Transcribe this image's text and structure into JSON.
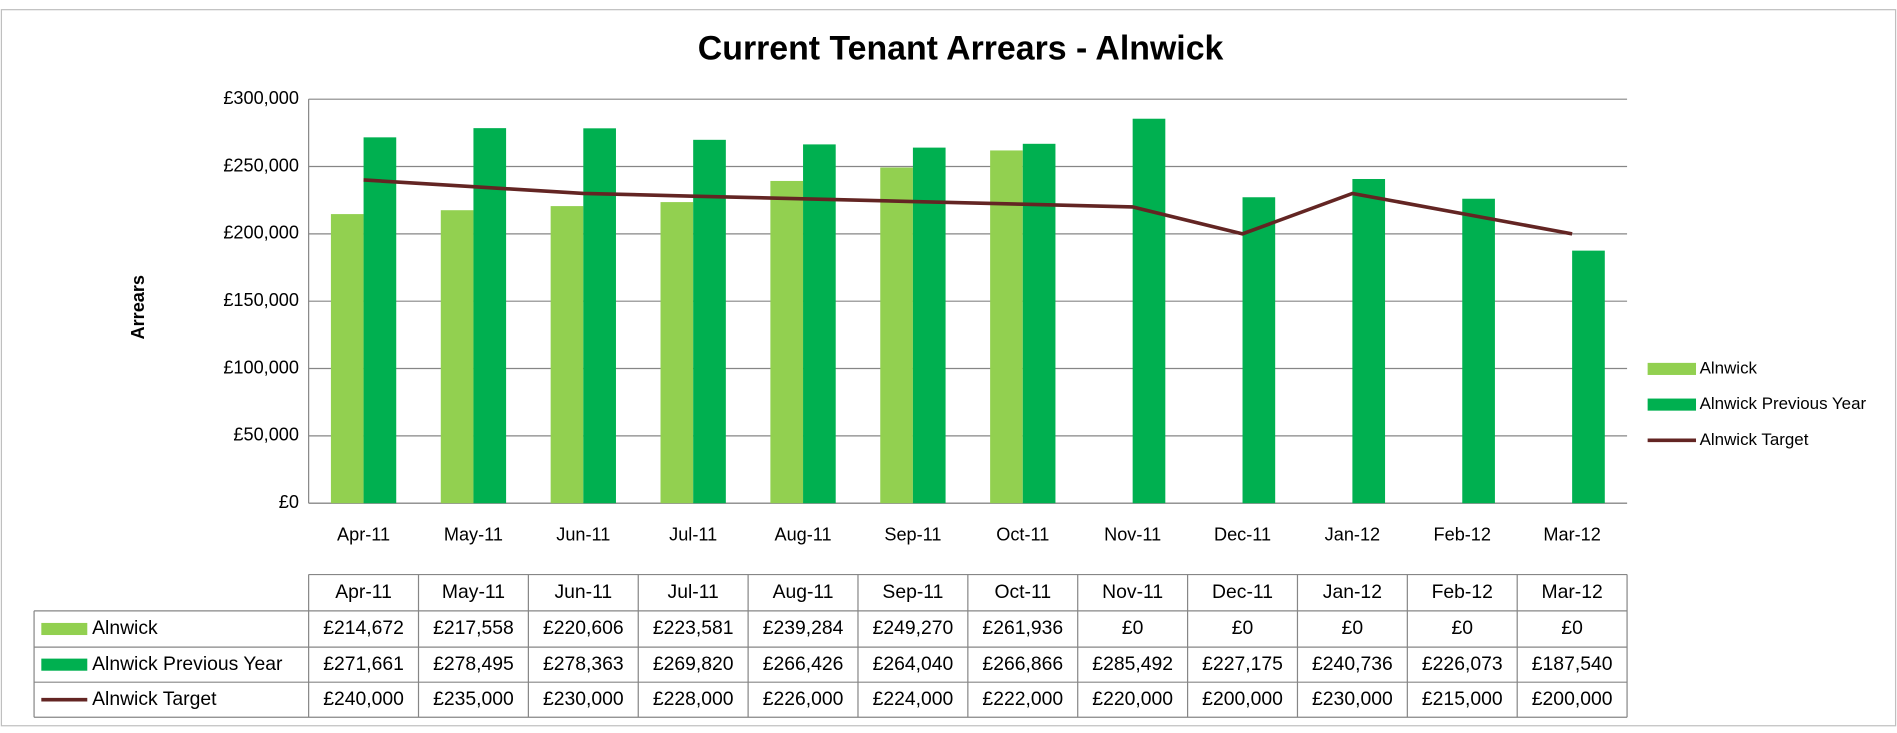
{
  "chart_data": {
    "type": "bar",
    "title": "Current Tenant Arrears - Alnwick",
    "y_label": "Arrears",
    "categories": [
      "Apr-11",
      "May-11",
      "Jun-11",
      "Jul-11",
      "Aug-11",
      "Sep-11",
      "Oct-11",
      "Nov-11",
      "Dec-11",
      "Jan-12",
      "Feb-12",
      "Mar-12"
    ],
    "series": [
      {
        "name": "Alnwick",
        "color": "#92d050",
        "type": "bar",
        "values": [
          214672,
          217558,
          220606,
          223581,
          239284,
          249270,
          261936,
          0,
          0,
          0,
          0,
          0
        ],
        "value_labels": [
          "£214,672",
          "£217,558",
          "£220,606",
          "£223,581",
          "£239,284",
          "£249,270",
          "£261,936",
          "£0",
          "£0",
          "£0",
          "£0",
          "£0"
        ]
      },
      {
        "name": "Alnwick Previous Year",
        "color": "#00b050",
        "type": "bar",
        "values": [
          271661,
          278495,
          278363,
          269820,
          266426,
          264040,
          266866,
          285492,
          227175,
          240736,
          226073,
          187540
        ],
        "value_labels": [
          "£271,661",
          "£278,495",
          "£278,363",
          "£269,820",
          "£266,426",
          "£264,040",
          "£266,866",
          "£285,492",
          "£227,175",
          "£240,736",
          "£226,073",
          "£187,540"
        ]
      },
      {
        "name": "Alnwick Target",
        "color": "#632523",
        "type": "line",
        "values": [
          240000,
          235000,
          230000,
          228000,
          226000,
          224000,
          222000,
          220000,
          200000,
          230000,
          215000,
          200000
        ],
        "value_labels": [
          "£240,000",
          "£235,000",
          "£230,000",
          "£228,000",
          "£226,000",
          "£224,000",
          "£222,000",
          "£220,000",
          "£200,000",
          "£230,000",
          "£215,000",
          "£200,000"
        ]
      }
    ],
    "ylim": [
      0,
      300000
    ],
    "yticks": [
      {
        "value": 0,
        "label": "£0"
      },
      {
        "value": 50000,
        "label": "£50,000"
      },
      {
        "value": 100000,
        "label": "£100,000"
      },
      {
        "value": 150000,
        "label": "£150,000"
      },
      {
        "value": 200000,
        "label": "£200,000"
      },
      {
        "value": 250000,
        "label": "£250,000"
      },
      {
        "value": 300000,
        "label": "£300,000"
      }
    ],
    "grid": true,
    "legend": "right",
    "data_table": true
  }
}
